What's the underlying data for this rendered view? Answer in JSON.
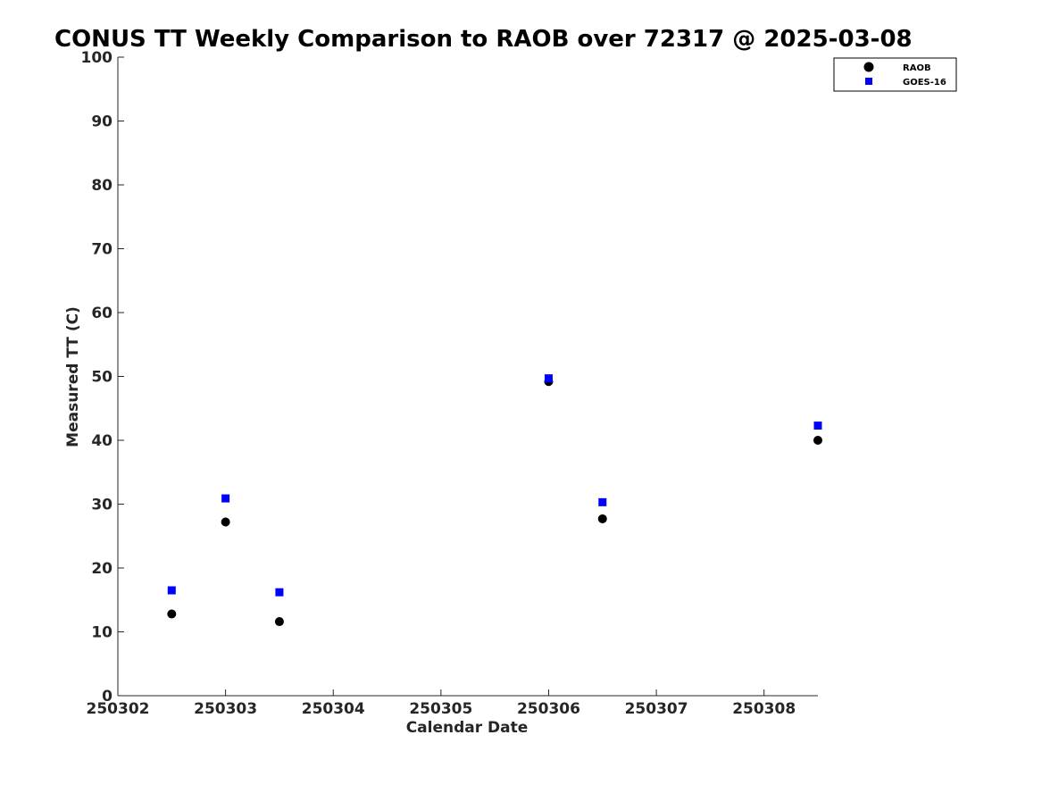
{
  "chart_data": {
    "type": "scatter",
    "title": "CONUS TT Weekly Comparison to RAOB over 72317 @ 2025-03-08",
    "xlabel": "Calendar Date",
    "ylabel": "Measured TT (C)",
    "xlim": [
      0,
      6.5
    ],
    "ylim": [
      0,
      100
    ],
    "x_ticks": [
      {
        "value": 0,
        "label": "250302"
      },
      {
        "value": 1,
        "label": "250303"
      },
      {
        "value": 2,
        "label": "250304"
      },
      {
        "value": 3,
        "label": "250305"
      },
      {
        "value": 4,
        "label": "250306"
      },
      {
        "value": 5,
        "label": "250307"
      },
      {
        "value": 6,
        "label": "250308"
      }
    ],
    "y_ticks": [
      "0",
      "10",
      "20",
      "30",
      "40",
      "50",
      "60",
      "70",
      "80",
      "90",
      "100"
    ],
    "grid": false,
    "legend_position": "top-right",
    "series": [
      {
        "name": "RAOB",
        "marker": "circle",
        "color": "#000000",
        "points": [
          {
            "x": 0.5,
            "y": 12.8
          },
          {
            "x": 1.0,
            "y": 27.2
          },
          {
            "x": 1.5,
            "y": 11.6
          },
          {
            "x": 4.0,
            "y": 49.2
          },
          {
            "x": 4.5,
            "y": 27.7
          },
          {
            "x": 6.5,
            "y": 40.0
          }
        ]
      },
      {
        "name": "GOES-16",
        "marker": "square",
        "color": "#0000ff",
        "points": [
          {
            "x": 0.5,
            "y": 16.5
          },
          {
            "x": 1.0,
            "y": 30.9
          },
          {
            "x": 1.5,
            "y": 16.2
          },
          {
            "x": 4.0,
            "y": 49.7
          },
          {
            "x": 4.5,
            "y": 30.3
          },
          {
            "x": 6.5,
            "y": 42.3
          }
        ]
      }
    ]
  }
}
